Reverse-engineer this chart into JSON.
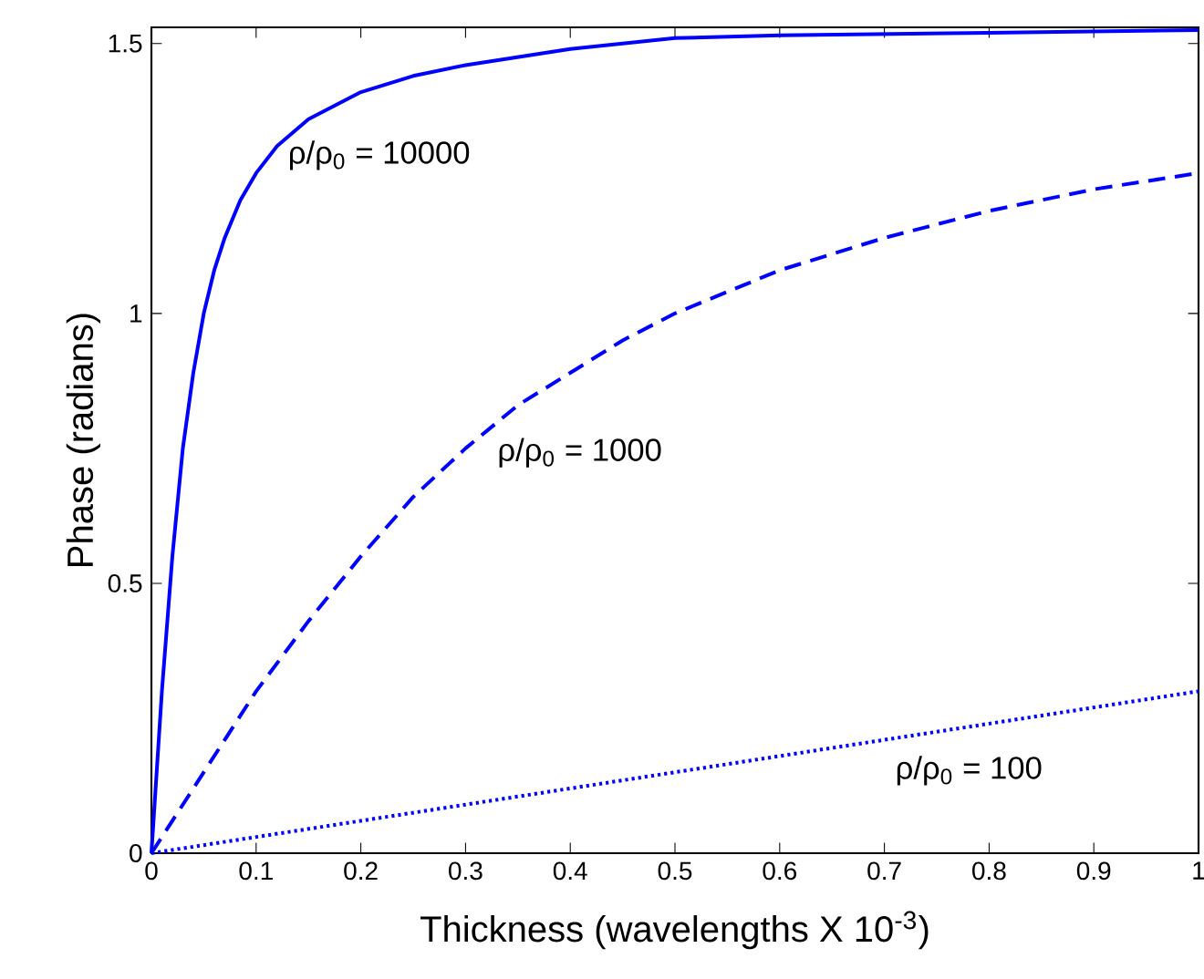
{
  "chart_data": {
    "type": "line",
    "xlabel": "Thickness (wavelengths X 10$^{-3}$)",
    "ylabel": "Phase (radians)",
    "xlim": [
      0,
      1
    ],
    "ylim": [
      0,
      1.53
    ],
    "xticks": [
      0,
      0.1,
      0.2,
      0.3,
      0.4,
      0.5,
      0.6,
      0.7,
      0.8,
      0.9,
      1
    ],
    "yticks": [
      0,
      0.5,
      1,
      1.5
    ],
    "grid": false,
    "marker": "none",
    "series": [
      {
        "color": "#0000ff",
        "line_style": "solid",
        "x": [
          0,
          0.005,
          0.01,
          0.02,
          0.03,
          0.04,
          0.05,
          0.06,
          0.07,
          0.085,
          0.1,
          0.12,
          0.15,
          0.2,
          0.25,
          0.3,
          0.4,
          0.5,
          0.6,
          0.8,
          1
        ],
        "values": [
          0,
          0.15,
          0.3,
          0.55,
          0.75,
          0.89,
          1.0,
          1.08,
          1.14,
          1.21,
          1.26,
          1.31,
          1.36,
          1.41,
          1.44,
          1.46,
          1.49,
          1.51,
          1.515,
          1.52,
          1.525
        ]
      },
      {
        "color": "#0000ff",
        "line_style": "dashed",
        "x": [
          0,
          0.05,
          0.1,
          0.15,
          0.2,
          0.25,
          0.3,
          0.35,
          0.4,
          0.45,
          0.5,
          0.6,
          0.7,
          0.8,
          0.9,
          1
        ],
        "values": [
          0,
          0.15,
          0.3,
          0.43,
          0.55,
          0.66,
          0.75,
          0.83,
          0.89,
          0.95,
          1.0,
          1.08,
          1.14,
          1.19,
          1.23,
          1.26
        ]
      },
      {
        "color": "#0000ff",
        "line_style": "dotted",
        "x": [
          0,
          0.2,
          0.4,
          0.6,
          0.8,
          1
        ],
        "values": [
          0,
          0.06,
          0.12,
          0.18,
          0.24,
          0.3
        ]
      }
    ],
    "annotations": [
      "ρ/ρ$_{0}$ = 10000",
      "ρ/ρ$_{0}$ = 1000",
      "ρ/ρ$_{0}$ = 100"
    ]
  }
}
